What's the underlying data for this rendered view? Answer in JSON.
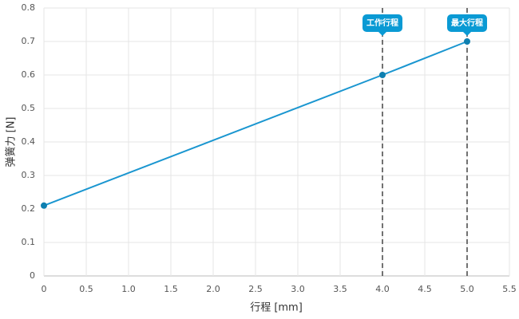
{
  "chart_data": {
    "type": "line",
    "x_label": "行程 [mm]",
    "y_label": "弹簧力 [N]",
    "x": [
      0,
      4,
      5
    ],
    "series": [
      {
        "color": "#1a96d0",
        "values": [
          0.21,
          0.6,
          0.7
        ]
      }
    ],
    "xlim": [
      0,
      5.5
    ],
    "xticks": [
      0,
      0.5,
      {
        "value": 1,
        "label": "1.0"
      },
      1.5,
      {
        "value": 2,
        "label": "2.0"
      },
      2.5,
      {
        "value": 3,
        "label": "3.0"
      },
      3.5,
      {
        "value": 4,
        "label": "4.0"
      },
      4.5,
      {
        "value": 5,
        "label": "5.0"
      },
      5.5
    ],
    "ylim": [
      0,
      0.8
    ],
    "yticks": [
      0,
      0.1,
      0.2,
      0.3,
      0.4,
      0.5,
      0.6,
      0.7,
      0.8
    ],
    "grid": true,
    "annotations": [
      {
        "x": 4,
        "label": "工作行程"
      },
      {
        "x": 5,
        "label": "最大行程"
      }
    ]
  }
}
